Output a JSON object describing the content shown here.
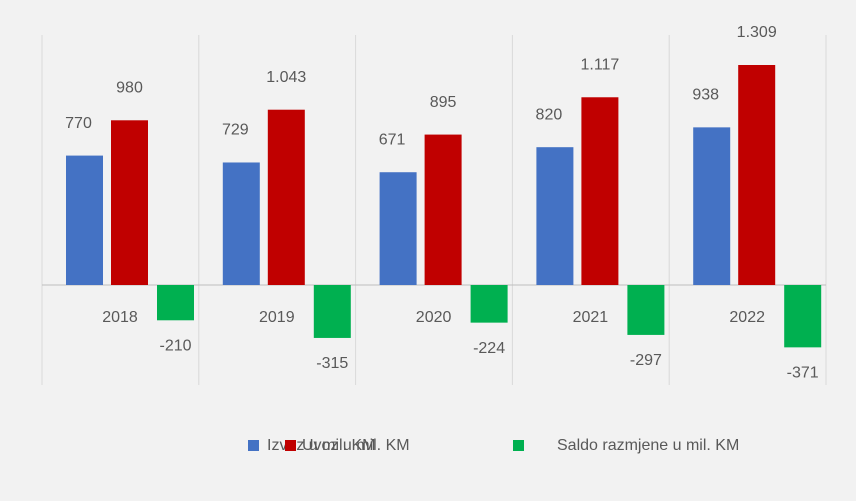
{
  "chart_data": {
    "type": "bar",
    "categories": [
      "2018",
      "2019",
      "2020",
      "2021",
      "2022"
    ],
    "series": [
      {
        "name": "Izvoz u mil. KM",
        "color": "#4472c4",
        "values": [
          770,
          729,
          671,
          820,
          938
        ],
        "value_labels": [
          "770",
          "729",
          "671",
          "820",
          "938"
        ]
      },
      {
        "name": "Uvoz u mil. KM",
        "color": "#c00000",
        "values": [
          980,
          1043,
          895,
          1117,
          1309
        ],
        "value_labels": [
          "980",
          "1.043",
          "895",
          "1.117",
          "1.309"
        ]
      },
      {
        "name": "Saldo razmjene u mil. KM",
        "color": "#00b050",
        "values": [
          -210,
          -315,
          -224,
          -297,
          -371
        ],
        "value_labels": [
          "-210",
          "-315",
          "-224",
          "-297",
          "-371"
        ]
      }
    ],
    "legend": "bottom"
  }
}
